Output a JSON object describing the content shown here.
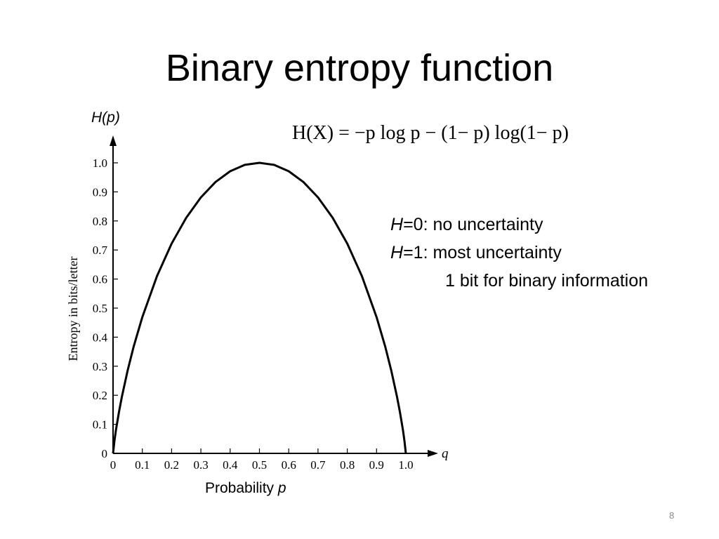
{
  "slide": {
    "title": "Binary entropy function",
    "page_number": "8"
  },
  "formula": {
    "text": "H(X) = −p log p − (1− p) log(1− p)"
  },
  "notes": {
    "line1_var": "H",
    "line1_rest": "=0: no uncertainty",
    "line2_var": "H",
    "line2_rest": "=1: most uncertainty",
    "line3": "1 bit for binary information"
  },
  "chart_data": {
    "type": "line",
    "top_label": "H(p)",
    "ylabel": "Entropy in bits/letter",
    "xlabel_text": "Probability ",
    "xlabel_var": "p",
    "x_axis_end_label": "q",
    "xlim": [
      0,
      1.0
    ],
    "ylim": [
      0,
      1.0
    ],
    "grid": false,
    "x_ticks": [
      "0",
      "0.1",
      "0.2",
      "0.3",
      "0.4",
      "0.5",
      "0.6",
      "0.7",
      "0.8",
      "0.9",
      "1.0"
    ],
    "y_ticks": [
      "0",
      "0.1",
      "0.2",
      "0.3",
      "0.4",
      "0.5",
      "0.6",
      "0.7",
      "0.8",
      "0.9",
      "1.0"
    ],
    "series": [
      {
        "x": [
          0.0,
          0.005,
          0.01,
          0.02,
          0.03,
          0.05,
          0.07,
          0.1,
          0.15,
          0.2,
          0.25,
          0.3,
          0.35,
          0.4,
          0.45,
          0.5,
          0.55,
          0.6,
          0.65,
          0.7,
          0.75,
          0.8,
          0.85,
          0.9,
          0.93,
          0.95,
          0.97,
          0.98,
          0.99,
          0.995,
          1.0
        ],
        "y": [
          0.0,
          0.045,
          0.081,
          0.141,
          0.194,
          0.286,
          0.366,
          0.469,
          0.61,
          0.722,
          0.811,
          0.881,
          0.934,
          0.971,
          0.993,
          1.0,
          0.993,
          0.971,
          0.934,
          0.881,
          0.811,
          0.722,
          0.61,
          0.469,
          0.366,
          0.286,
          0.194,
          0.141,
          0.081,
          0.045,
          0.0
        ]
      }
    ]
  },
  "colors": {
    "curve": "#000000",
    "page_number": "#8a8a8a"
  }
}
